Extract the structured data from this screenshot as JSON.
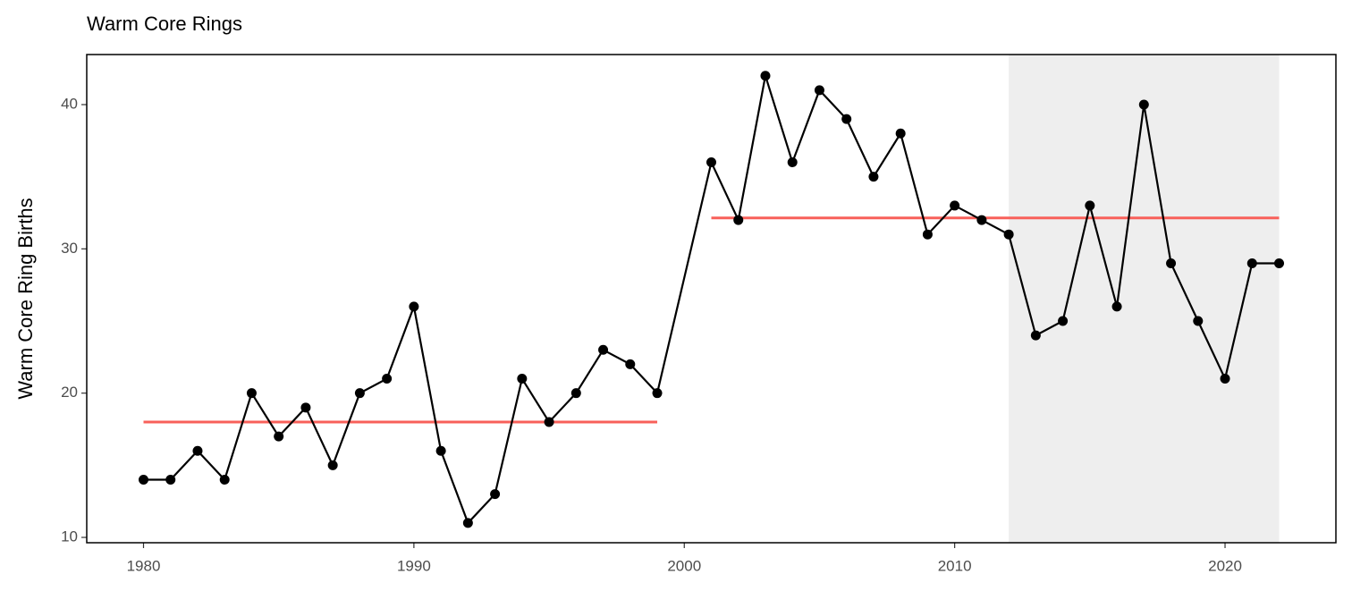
{
  "chart_data": {
    "type": "line",
    "title": "Warm Core Rings",
    "y_label": "Warm Core Ring Births",
    "x": [
      1980,
      1981,
      1982,
      1983,
      1984,
      1985,
      1986,
      1987,
      1988,
      1989,
      1990,
      1991,
      1992,
      1993,
      1994,
      1995,
      1996,
      1997,
      1998,
      1999,
      2001,
      2002,
      2003,
      2004,
      2005,
      2006,
      2007,
      2008,
      2009,
      2010,
      2011,
      2012,
      2013,
      2014,
      2015,
      2016,
      2017,
      2018,
      2019,
      2020,
      2021,
      2022
    ],
    "series": [
      {
        "color": "#000000",
        "values": [
          14,
          14,
          16,
          14,
          20,
          17,
          19,
          15,
          20,
          21,
          26,
          16,
          11,
          13,
          21,
          18,
          20,
          23,
          22,
          20,
          36,
          32,
          42,
          36,
          41,
          39,
          35,
          38,
          31,
          33,
          32,
          31,
          24,
          25,
          33,
          26,
          40,
          29,
          25,
          21,
          29,
          29
        ]
      }
    ],
    "mean_segments": [
      {
        "x": [
          1980,
          1999
        ],
        "value": 18.0
      },
      {
        "x": [
          2001,
          2022
        ],
        "value": 32.14
      }
    ],
    "mean_color": "#f8605a",
    "shaded_x": [
      2012,
      2022
    ],
    "shade_color": "#eeeeee",
    "xlim": [
      1977.9,
      2024.1
    ],
    "ylim": [
      9.63,
      43.47
    ],
    "xticks": [
      1980,
      1990,
      2000,
      2010,
      2020
    ],
    "yticks": [
      10,
      20,
      30,
      40
    ],
    "grid": false
  }
}
